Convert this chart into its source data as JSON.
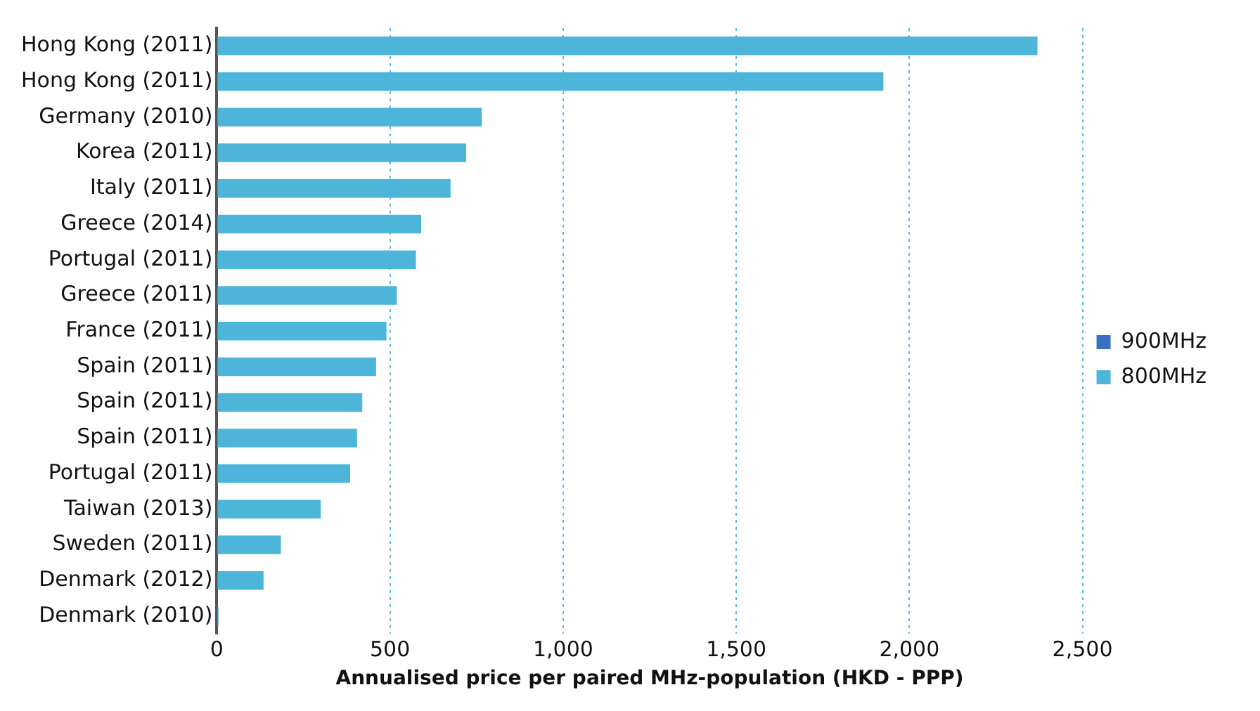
{
  "chart_data": {
    "type": "bar",
    "orientation": "horizontal",
    "xlabel": "Annualised price per paired MHz-population (HKD - PPP)",
    "categories": [
      "Hong Kong (2011)",
      "Hong Kong (2011)",
      "Germany (2010)",
      "Korea (2011)",
      "Italy (2011)",
      "Greece (2014)",
      "Portugal (2011)",
      "Greece (2011)",
      "France (2011)",
      "Spain (2011)",
      "Spain (2011)",
      "Spain (2011)",
      "Portugal (2011)",
      "Taiwan (2013)",
      "Sweden (2011)",
      "Denmark (2012)",
      "Denmark (2010)"
    ],
    "series": [
      {
        "name": "900MHz",
        "color": "#3b6fc2",
        "values": [
          null,
          null,
          null,
          null,
          null,
          null,
          null,
          null,
          null,
          null,
          null,
          null,
          null,
          null,
          null,
          null,
          null
        ]
      },
      {
        "name": "800MHz",
        "color": "#4db4da",
        "values": [
          2370,
          1925,
          765,
          720,
          675,
          590,
          575,
          520,
          490,
          460,
          420,
          405,
          385,
          300,
          185,
          135,
          5
        ]
      }
    ],
    "xlim": [
      0,
      2500
    ],
    "xticks": [
      0,
      500,
      {
        "value": 1000,
        "label": "1,000"
      },
      {
        "value": 1500,
        "label": "1,500"
      },
      {
        "value": 2000,
        "label": "2,000"
      },
      {
        "value": 2500,
        "label": "2,500"
      }
    ],
    "grid": "x",
    "legend": "right"
  }
}
